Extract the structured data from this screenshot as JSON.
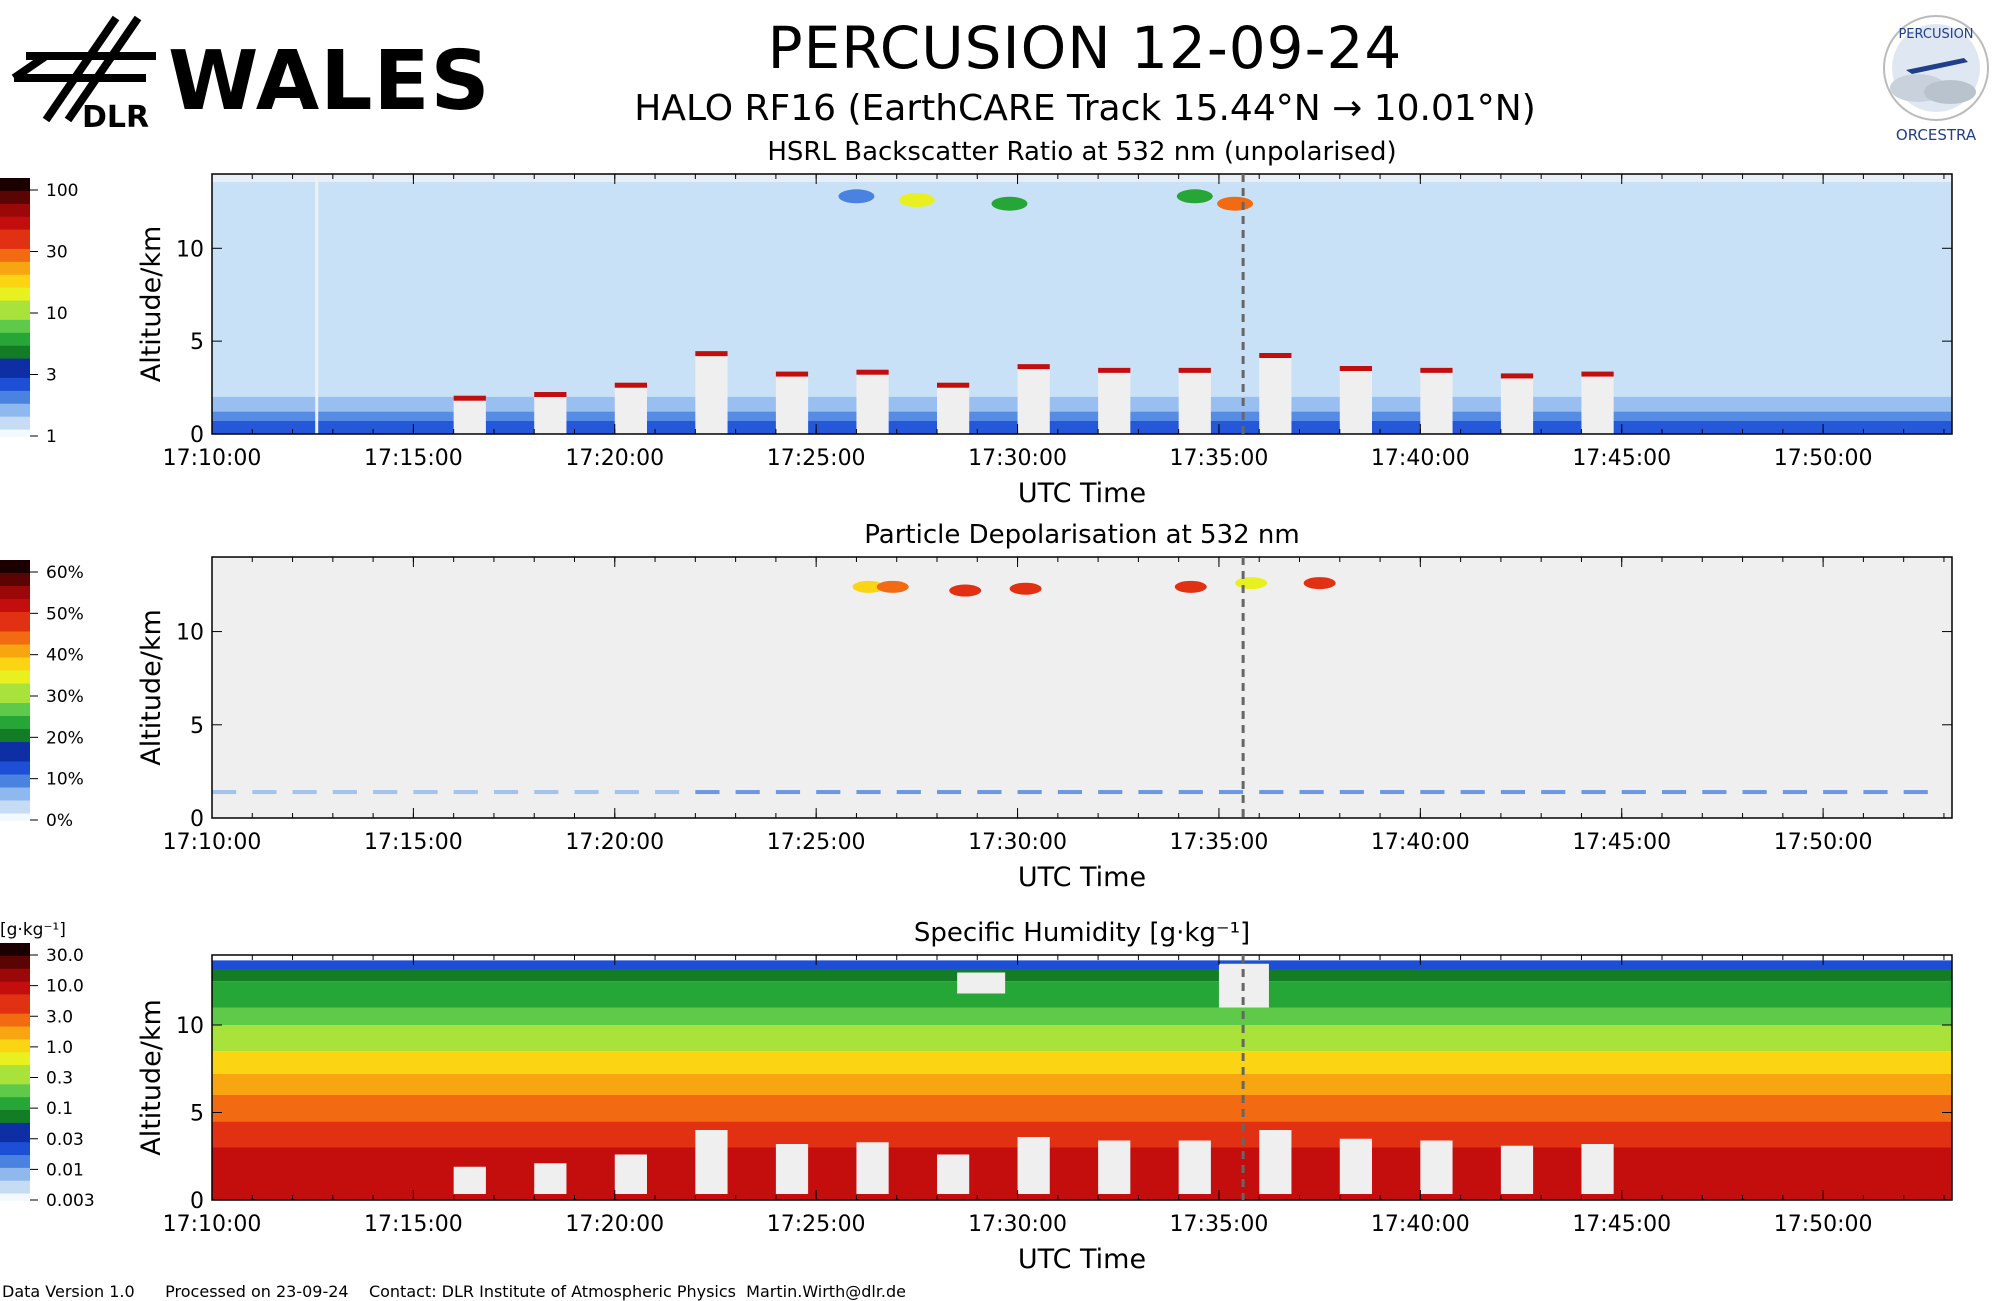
{
  "header": {
    "title": "PERCUSION  12-09-24",
    "subtitle": "HALO RF16 (EarthCARE Track  15.44°N → 10.01°N)",
    "logo_left_big": "WALES",
    "logo_left_small": "DLR",
    "logo_right_top": "PERCUSION",
    "logo_right_bottom": "ORCESTRA"
  },
  "footer": {
    "version": "Data Version 1.0",
    "processed": "Processed on 23-09-24",
    "contact": "Contact: DLR Institute of Atmospheric Physics  Martin.Wirth@dlr.de"
  },
  "colors": {
    "background_clear": "#c8e1f7",
    "no_data": "#efefef",
    "dashed_marker": "#666666"
  },
  "chart_data": [
    {
      "type": "heatmap",
      "title": "HSRL Backscatter Ratio at 532 nm (unpolarised)",
      "xlabel": "UTC Time",
      "ylabel": "Altitude/km",
      "x_ticks": [
        "17:10:00",
        "17:15:00",
        "17:20:00",
        "17:25:00",
        "17:30:00",
        "17:35:00",
        "17:40:00",
        "17:45:00",
        "17:50:00"
      ],
      "x_range_min": [
        0,
        43.2
      ],
      "y_ticks": [
        0,
        5,
        10
      ],
      "ylim": [
        0,
        14
      ],
      "colorbar": {
        "unit": "",
        "ticks": [
          "100",
          "30",
          "10",
          "3",
          "1"
        ],
        "scale": "log",
        "range": [
          1,
          200
        ]
      },
      "marker_time_min": 25.6,
      "cloud_top_km": [
        1.6,
        1.7,
        1.6,
        1.8,
        1.7,
        1.8,
        1.9,
        2.0,
        2.1,
        2.3,
        2.6,
        3.0,
        4.3,
        4.4,
        3.2,
        3.0,
        3.3,
        2.8,
        2.6,
        3.4,
        3.6,
        3.5,
        3.4,
        3.6,
        3.4,
        3.7,
        4.2,
        3.9,
        3.5,
        3.3,
        3.4,
        3.2,
        3.1,
        3.0,
        3.2,
        3.3,
        3.3,
        3.1,
        3.0,
        2.6,
        2.5,
        2.3,
        2.2
      ]
    },
    {
      "type": "heatmap",
      "title": "Particle Depolarisation at 532 nm",
      "xlabel": "UTC Time",
      "ylabel": "Altitude/km",
      "x_ticks": [
        "17:10:00",
        "17:15:00",
        "17:20:00",
        "17:25:00",
        "17:30:00",
        "17:35:00",
        "17:40:00",
        "17:45:00",
        "17:50:00"
      ],
      "y_ticks": [
        0,
        5,
        10
      ],
      "ylim": [
        0,
        14
      ],
      "colorbar": {
        "unit": "",
        "ticks": [
          "60%",
          "50%",
          "40%",
          "30%",
          "20%",
          "10%",
          "0%"
        ],
        "scale": "linear",
        "range": [
          0,
          60
        ]
      },
      "marker_time_min": 25.6
    },
    {
      "type": "heatmap",
      "title": "Specific Humidity [g·kg⁻¹]",
      "xlabel": "UTC Time",
      "ylabel": "Altitude/km",
      "x_ticks": [
        "17:10:00",
        "17:15:00",
        "17:20:00",
        "17:25:00",
        "17:30:00",
        "17:35:00",
        "17:40:00",
        "17:45:00",
        "17:50:00"
      ],
      "y_ticks": [
        0,
        5,
        10
      ],
      "ylim": [
        0,
        14
      ],
      "colorbar": {
        "unit": "[g·kg⁻¹]",
        "ticks": [
          "30.0",
          "10.0",
          "3.0",
          "1.0",
          "0.3",
          "0.1",
          "0.03",
          "0.01",
          "0.003"
        ],
        "scale": "log",
        "range": [
          0.003,
          30
        ]
      },
      "marker_time_min": 25.6
    }
  ]
}
